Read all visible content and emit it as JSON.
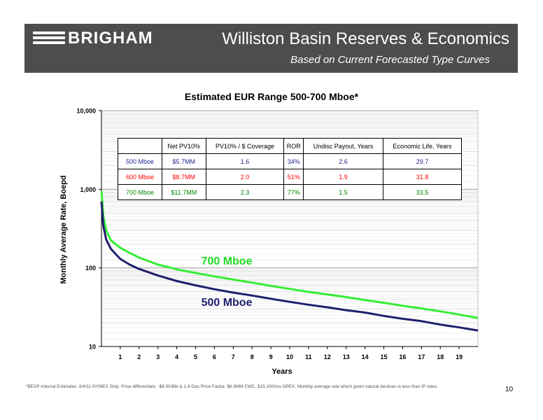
{
  "header": {
    "logo_text": "BRIGHAM",
    "title": "Williston Basin Reserves & Economics",
    "subtitle": "Based on Current Forecasted Type Curves"
  },
  "chart_data": {
    "type": "line",
    "title": "Estimated EUR Range 500-700 Mboe*",
    "xlabel": "Years",
    "ylabel": "Monthly Average Rate, Boepd",
    "x_ticks": [
      1,
      2,
      3,
      4,
      5,
      6,
      7,
      8,
      9,
      10,
      11,
      12,
      13,
      14,
      15,
      16,
      17,
      18,
      19
    ],
    "y_scale": "log",
    "ylim": [
      10,
      10000
    ],
    "xlim": [
      0,
      20
    ],
    "y_tick_labels": [
      "10",
      "100",
      "1,000",
      "10,000"
    ],
    "grid": true,
    "series": [
      {
        "name": "700 Mboe",
        "color": "#33ee33",
        "x": [
          0,
          0.1,
          0.25,
          0.5,
          0.75,
          1,
          1.5,
          2,
          3,
          4,
          5,
          6,
          7,
          8,
          9,
          10,
          11,
          12,
          13,
          14,
          15,
          16,
          17,
          18,
          19,
          20
        ],
        "y": [
          950,
          450,
          300,
          225,
          200,
          180,
          155,
          135,
          110,
          96,
          86,
          78,
          71,
          65,
          59,
          54,
          49.5,
          46,
          42.5,
          39,
          36,
          33,
          30.5,
          28,
          25.5,
          23
        ]
      },
      {
        "name": "500 Mboe",
        "color": "#1f1f6e",
        "x": [
          0,
          0.1,
          0.25,
          0.5,
          0.75,
          1,
          1.5,
          2,
          3,
          4,
          5,
          6,
          7,
          8,
          9,
          10,
          11,
          12,
          13,
          14,
          15,
          16,
          17,
          18,
          19,
          20
        ],
        "y": [
          700,
          340,
          230,
          175,
          150,
          130,
          110,
          97,
          80,
          68,
          60,
          53.5,
          48.5,
          44.5,
          40.5,
          37,
          34,
          31.5,
          29,
          27,
          24.5,
          22.5,
          21,
          19,
          17.5,
          16
        ]
      }
    ],
    "table": {
      "headers": [
        "",
        "Net PV10%",
        "PV10% / $ Coverage",
        "ROR",
        "Undisc Payout, Years",
        "Economic Life, Years"
      ],
      "rows": [
        {
          "color": "#1f1f8e",
          "cells": [
            "500 Mboe",
            "$5.7MM",
            "1.6",
            "34%",
            "2.6",
            "29.7"
          ]
        },
        {
          "color": "#ff0000",
          "cells": [
            "600 Mboe",
            "$8.7MM",
            "2.0",
            "51%",
            "1.9",
            "31.8"
          ]
        },
        {
          "color": "#008800",
          "cells": [
            "700 Mboe",
            "$11.7MM",
            "2.3",
            "77%",
            "1.5",
            "33.5"
          ]
        }
      ]
    }
  },
  "footnote": "*BEXP Internal Estimates. 8/4/11 NYMEX Strip.  Price differentials: -$8.00/Bbl & 1.4 Gas Price Factor. $8.9MM CWC, $15,100/mo OPEX. Monthly average rate which given natural declines is less than IP rates.",
  "page_number": "10"
}
